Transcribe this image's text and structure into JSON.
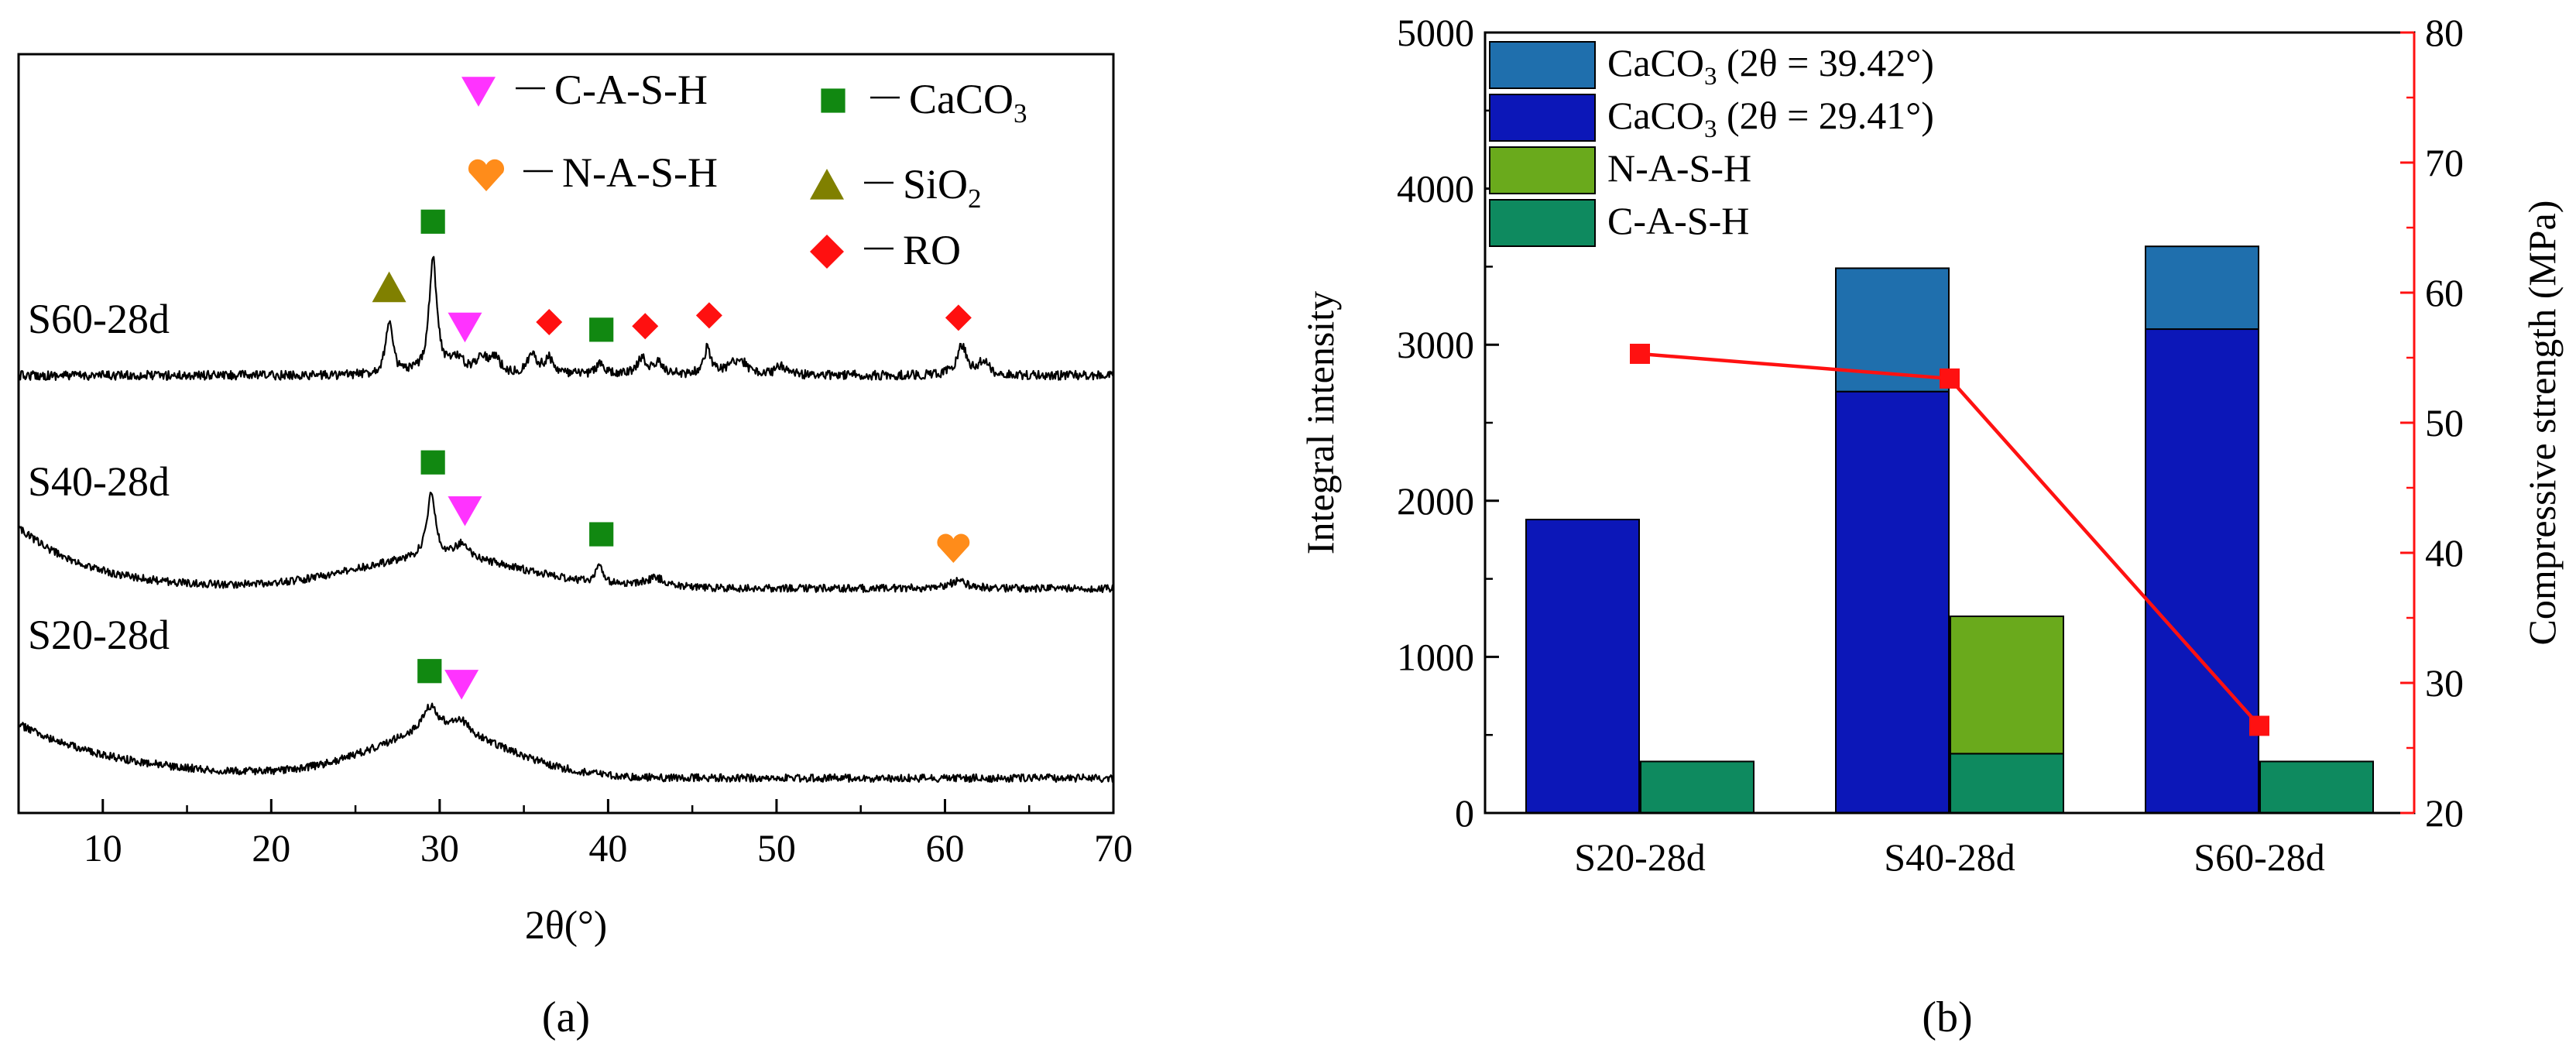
{
  "chart_data": [
    {
      "type": "line",
      "panel_label": "(a)",
      "title": "",
      "xlabel": "2θ(°)",
      "ylabel": "",
      "xlim": [
        5,
        70
      ],
      "xticks": [
        10,
        20,
        30,
        40,
        50,
        60,
        70
      ],
      "y_axis_shown": false,
      "series": [
        {
          "name": "S60-28d",
          "baseline": 240,
          "decay": 0,
          "noise": 6,
          "peaks": [
            [
              27.0,
              70,
              0.25
            ],
            [
              29.6,
              150,
              0.28
            ],
            [
              31.0,
              20,
              0.5
            ],
            [
              32.5,
              22,
              0.4
            ],
            [
              33.3,
              20,
              0.35
            ],
            [
              35.5,
              25,
              0.35
            ],
            [
              36.5,
              20,
              0.35
            ],
            [
              39.5,
              14,
              0.3
            ],
            [
              42.0,
              20,
              0.35
            ],
            [
              43.0,
              14,
              0.4
            ],
            [
              45.9,
              35,
              0.25
            ],
            [
              47.5,
              14,
              0.5
            ],
            [
              48.0,
              10,
              0.4
            ],
            [
              50.3,
              12,
              0.4
            ],
            [
              61.0,
              38,
              0.35
            ],
            [
              62.3,
              18,
              0.35
            ]
          ]
        },
        {
          "name": "S40-28d",
          "baseline": 30,
          "decay": 80,
          "decay_width": 4,
          "hump": [
            30,
            40,
            7
          ],
          "noise": 5,
          "peaks": [
            [
              29.5,
              85,
              0.3
            ],
            [
              31.3,
              18,
              0.45
            ],
            [
              39.5,
              20,
              0.3
            ],
            [
              42.8,
              12,
              0.8
            ],
            [
              60.8,
              10,
              0.6
            ]
          ]
        },
        {
          "name": "S20-28d",
          "baseline": 20,
          "decay": 70,
          "decay_width": 6,
          "hump": [
            30,
            55,
            6
          ],
          "noise": 5,
          "peaks": [
            [
              29.4,
              35,
              0.6
            ],
            [
              31.2,
              20,
              0.7
            ]
          ]
        }
      ],
      "markers": {
        "S60-28d": [
          {
            "phase": "SiO2",
            "x": 27.0
          },
          {
            "phase": "CaCO3",
            "x": 29.6
          },
          {
            "phase": "C-A-S-H",
            "x": 31.5
          },
          {
            "phase": "RO",
            "x": 36.5
          },
          {
            "phase": "CaCO3",
            "x": 39.6
          },
          {
            "phase": "RO",
            "x": 42.2
          },
          {
            "phase": "RO",
            "x": 46.0
          },
          {
            "phase": "RO",
            "x": 60.8
          }
        ],
        "S40-28d": [
          {
            "phase": "CaCO3",
            "x": 29.6
          },
          {
            "phase": "C-A-S-H",
            "x": 31.5
          },
          {
            "phase": "CaCO3",
            "x": 39.6
          },
          {
            "phase": "N-A-S-H",
            "x": 60.5
          }
        ],
        "S20-28d": [
          {
            "phase": "CaCO3",
            "x": 29.4
          },
          {
            "phase": "C-A-S-H",
            "x": 31.3
          }
        ]
      },
      "legend": {
        "position": "top-right",
        "entries": [
          {
            "phase": "C-A-S-H",
            "label": "C-A-S-H"
          },
          {
            "phase": "CaCO3",
            "label": "CaCO",
            "sub": "3"
          },
          {
            "phase": "N-A-S-H",
            "label": "N-A-S-H"
          },
          {
            "phase": "SiO2",
            "label": "SiO",
            "sub": "2"
          },
          {
            "phase": "RO",
            "label": "RO"
          }
        ]
      },
      "phase_colors": {
        "C-A-S-H": "#ff33ff",
        "CaCO3": "#118811",
        "N-A-S-H": "#ff8c1a",
        "SiO2": "#808000",
        "RO": "#ff1010"
      }
    },
    {
      "type": "bar",
      "panel_label": "(b)",
      "title": "",
      "xlabel": "",
      "ylabel": "Integral intensity",
      "y2label": "Compressive strength (MPa)",
      "categories": [
        "S20-28d",
        "S40-28d",
        "S60-28d"
      ],
      "ylim": [
        0,
        5000
      ],
      "yticks": [
        0,
        1000,
        2000,
        3000,
        4000,
        5000
      ],
      "y2lim": [
        20,
        80
      ],
      "y2ticks": [
        20,
        30,
        40,
        50,
        60,
        70,
        80
      ],
      "stacks": [
        {
          "position": "left",
          "series": [
            {
              "name": "CaCO3 (2θ = 29.41°)",
              "values": [
                1880,
                2700,
                3100
              ]
            },
            {
              "name": "CaCO3 (2θ = 39.42°)",
              "values": [
                0,
                790,
                530
              ]
            }
          ]
        },
        {
          "position": "right",
          "series": [
            {
              "name": "C-A-S-H",
              "values": [
                330,
                380,
                330
              ]
            },
            {
              "name": "N-A-S-H",
              "values": [
                0,
                880,
                0
              ]
            }
          ]
        }
      ],
      "line_series": {
        "name": "Compressive strength",
        "axis": "right",
        "values": [
          55.3,
          53.4,
          26.7
        ]
      },
      "series_colors": {
        "CaCO3 (2θ = 39.42°)": "#1f6fad",
        "CaCO3 (2θ = 29.41°)": "#0c17b8",
        "N-A-S-H": "#6aaa1c",
        "C-A-S-H": "#0e8a5f",
        "Compressive strength": "#ff1111"
      },
      "axis2_color": "#ff1111",
      "legend": {
        "position": "top-left",
        "entries": [
          {
            "series": "CaCO3 (2θ = 39.42°)",
            "pre": "CaCO",
            "sub": "3",
            "post": " (2θ = 39.42°)"
          },
          {
            "series": "CaCO3 (2θ = 29.41°)",
            "pre": "CaCO",
            "sub": "3",
            "post": " (2θ = 29.41°)"
          },
          {
            "series": "N-A-S-H",
            "pre": "N-A-S-H",
            "sub": "",
            "post": ""
          },
          {
            "series": "C-A-S-H",
            "pre": "C-A-S-H",
            "sub": "",
            "post": ""
          }
        ]
      }
    }
  ]
}
